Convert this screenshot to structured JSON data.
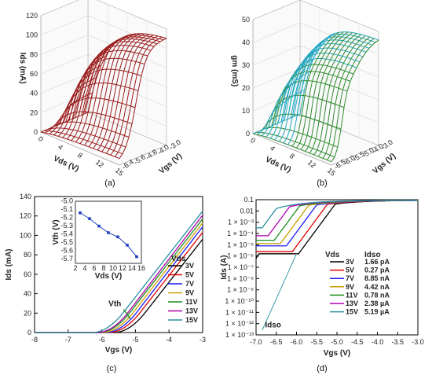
{
  "captions": {
    "a": "(a)",
    "b": "(b)",
    "c": "(c)",
    "d": "(d)"
  },
  "colors": {
    "3V": "#000000",
    "5V": "#e00000",
    "7V": "#1a1aff",
    "9V": "#c8a000",
    "11V": "#1e8c1e",
    "13V": "#b000b0",
    "15V": "#2a8fa0",
    "surface_a": "#9b1c1c",
    "surface_b_green": "#2e8b2e",
    "surface_b_cyan": "#22a7c0",
    "inset": "#1f3fbf",
    "vth_arrow": "#2e8b2e",
    "idso_line": "#3a9aa8"
  },
  "panel_a": {
    "zlabel": "Ids (mA)",
    "xlabel": "Vds (V)",
    "ylabel": "Vgs (V)",
    "z_ticks": [
      "0",
      "20",
      "40",
      "60",
      "80",
      "100",
      "120"
    ],
    "x_ticks": [
      "0",
      "4",
      "8",
      "12",
      "15"
    ],
    "y_ticks": [
      "-3.0",
      "-4.0",
      "-4.8",
      "-5.6",
      "-6.4"
    ]
  },
  "panel_b": {
    "zlabel": "gm (mS)",
    "xlabel": "Vds (V)",
    "ylabel": "Vgs (V)",
    "z_ticks": [
      "0",
      "10",
      "20",
      "30",
      "40",
      "50"
    ],
    "x_ticks": [
      "0",
      "4",
      "8",
      "12",
      "15"
    ],
    "y_ticks": [
      "-3.0",
      "-4.0",
      "-5.0",
      "-5.5",
      "-6.0",
      "-6.5"
    ]
  },
  "chart_data": [
    {
      "id": "c",
      "type": "line",
      "xlabel": "Vgs (V)",
      "ylabel": "Ids (mA)",
      "xlim": [
        -8,
        -3
      ],
      "ylim": [
        0,
        140
      ],
      "x_ticks": [
        "-8",
        "-7",
        "-6",
        "-5",
        "-4",
        "-3"
      ],
      "y_ticks": [
        "0",
        "20",
        "40",
        "60",
        "80",
        "100",
        "120",
        "140"
      ],
      "legend_title": "Vds",
      "legend": [
        "3V",
        "5V",
        "7V",
        "9V",
        "11V",
        "13V",
        "15V"
      ],
      "annotation": "Vth",
      "series": [
        {
          "name": "3V",
          "vth": -5.05,
          "end": 106
        },
        {
          "name": "5V",
          "vth": -5.2,
          "end": 113
        },
        {
          "name": "7V",
          "vth": -5.3,
          "end": 119
        },
        {
          "name": "9V",
          "vth": -5.4,
          "end": 123
        },
        {
          "name": "11V",
          "vth": -5.5,
          "end": 127
        },
        {
          "name": "13V",
          "vth": -5.55,
          "end": 131
        },
        {
          "name": "15V",
          "vth": -5.7,
          "end": 135
        }
      ],
      "inset": {
        "xlabel": "Vds (V)",
        "ylabel": "Vth (V)",
        "x_ticks": [
          "2",
          "4",
          "6",
          "8",
          "10",
          "12",
          "14",
          "16"
        ],
        "y_ticks": [
          "-5.0",
          "-5.1",
          "-5.2",
          "-5.3",
          "-5.4",
          "-5.5",
          "-5.6",
          "-5.7"
        ],
        "xlim": [
          2,
          16
        ],
        "ylim": [
          -5.75,
          -5.0
        ],
        "x": [
          3,
          5,
          7,
          9,
          11,
          13,
          15
        ],
        "y": [
          -5.14,
          -5.21,
          -5.3,
          -5.38,
          -5.43,
          -5.53,
          -5.67
        ]
      }
    },
    {
      "id": "d",
      "type": "line",
      "xlabel": "Vgs (V)",
      "ylabel": "Ids (A)",
      "xlim": [
        -7,
        -3
      ],
      "x_ticks": [
        "-7.0",
        "-6.5",
        "-6.0",
        "-5.5",
        "-5.0",
        "-4.5",
        "-4.0",
        "-3.5",
        "-3.0"
      ],
      "y_ticks": [
        "0.1",
        "0.01",
        "1 × 10⁻³",
        "1 × 10⁻⁴",
        "1 × 10⁻⁵",
        "1 × 10⁻⁶",
        "1 × 10⁻⁷",
        "1 × 10⁻⁸",
        "1 × 10⁻⁹",
        "1 × 10⁻¹⁰",
        "1 × 10⁻¹¹",
        "1 × 10⁻¹²",
        "1 × 10⁻¹³"
      ],
      "y_log_range": [
        -13,
        -1
      ],
      "legend_headers": [
        "Vds",
        "Idso"
      ],
      "annotation": "Idso",
      "series": [
        {
          "name": "3V",
          "idso": "1.66 pA",
          "floor": -5.8,
          "knee": -5.95
        },
        {
          "name": "5V",
          "idso": "0.27 pA",
          "floor": -5.6,
          "knee": -6.1
        },
        {
          "name": "7V",
          "idso": "8.85 nA",
          "floor": -5.1,
          "knee": -6.25
        },
        {
          "name": "9V",
          "idso": "4.42 nA",
          "floor": -4.9,
          "knee": -6.4
        },
        {
          "name": "11V",
          "idso": "0.78 nA",
          "floor": -4.6,
          "knee": -6.55
        },
        {
          "name": "13V",
          "idso": "2.38 µA",
          "floor": -4.2,
          "knee": -6.7
        },
        {
          "name": "15V",
          "idso": "5.19 µA",
          "floor": -3.5,
          "knee": -6.85
        }
      ]
    }
  ]
}
